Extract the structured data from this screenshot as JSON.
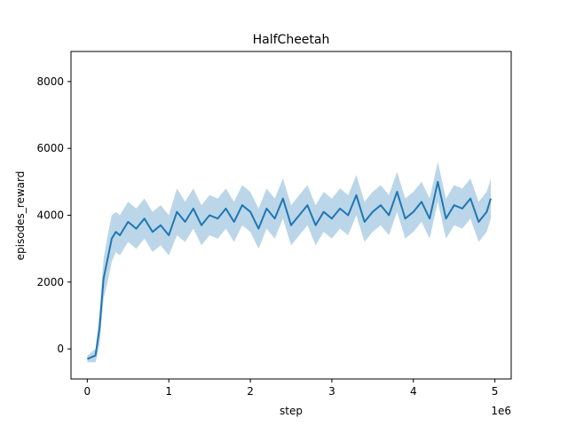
{
  "chart_data": {
    "type": "line",
    "title": "HalfCheetah",
    "xlabel": "step",
    "ylabel": "episodes_reward",
    "x_offset_label": "1e6",
    "xlim": [
      -200000,
      5200000
    ],
    "ylim": [
      -900,
      8900
    ],
    "x_ticks": [
      0,
      1000000,
      2000000,
      3000000,
      4000000,
      5000000
    ],
    "x_tick_labels": [
      "0",
      "1",
      "2",
      "3",
      "4",
      "5"
    ],
    "y_ticks": [
      0,
      2000,
      4000,
      6000,
      8000
    ],
    "y_tick_labels": [
      "0",
      "2000",
      "4000",
      "6000",
      "8000"
    ],
    "grid": false,
    "line_color": "#1f77b4",
    "band_color": "#1f77b4",
    "band_opacity": 0.3,
    "series": [
      {
        "x": [
          0,
          100000,
          150000,
          200000,
          250000,
          300000,
          350000,
          400000,
          500000,
          600000,
          700000,
          800000,
          900000,
          1000000,
          1100000,
          1200000,
          1300000,
          1400000,
          1500000,
          1600000,
          1700000,
          1800000,
          1900000,
          2000000,
          2100000,
          2200000,
          2300000,
          2400000,
          2500000,
          2600000,
          2700000,
          2800000,
          2900000,
          3000000,
          3100000,
          3200000,
          3300000,
          3400000,
          3500000,
          3600000,
          3700000,
          3800000,
          3900000,
          4000000,
          4100000,
          4200000,
          4300000,
          4400000,
          4500000,
          4600000,
          4700000,
          4800000,
          4900000,
          4950000
        ],
        "y": [
          -300,
          -200,
          600,
          2100,
          2700,
          3300,
          3500,
          3400,
          3800,
          3600,
          3900,
          3500,
          3700,
          3400,
          4100,
          3800,
          4200,
          3700,
          4000,
          3900,
          4200,
          3800,
          4300,
          4100,
          3600,
          4200,
          3900,
          4500,
          3700,
          4000,
          4300,
          3700,
          4100,
          3900,
          4200,
          4000,
          4600,
          3800,
          4100,
          4300,
          4000,
          4700,
          3900,
          4100,
          4400,
          3900,
          5000,
          3900,
          4300,
          4200,
          4500,
          3800,
          4100,
          4500
        ],
        "y_lower": [
          -400,
          -400,
          100,
          1500,
          2000,
          2600,
          2900,
          2800,
          3200,
          3000,
          3300,
          2900,
          3100,
          2800,
          3400,
          3200,
          3600,
          3100,
          3400,
          3300,
          3600,
          3200,
          3700,
          3500,
          3000,
          3600,
          3300,
          3900,
          3100,
          3400,
          3700,
          3100,
          3500,
          3300,
          3600,
          3400,
          4000,
          3200,
          3500,
          3700,
          3400,
          4100,
          3300,
          3500,
          3800,
          3300,
          4400,
          3300,
          3700,
          3600,
          3900,
          3200,
          3500,
          3900
        ],
        "y_upper": [
          -200,
          0,
          1100,
          2700,
          3400,
          4000,
          4100,
          4000,
          4400,
          4200,
          4500,
          4100,
          4300,
          4000,
          4800,
          4400,
          4800,
          4300,
          4600,
          4500,
          4800,
          4400,
          4900,
          4700,
          4200,
          4800,
          4500,
          5100,
          4300,
          4600,
          4900,
          4300,
          4700,
          4500,
          4800,
          4600,
          5200,
          4400,
          4700,
          4900,
          4600,
          5300,
          4500,
          4700,
          5000,
          4500,
          5600,
          4500,
          4900,
          4800,
          5100,
          4400,
          4700,
          5100
        ]
      }
    ]
  }
}
